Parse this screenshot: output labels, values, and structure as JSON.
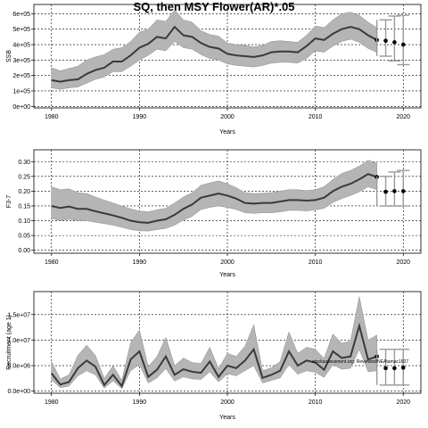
{
  "title": "SQ, then MSY Flower(AR)*.05",
  "chart_data": [
    {
      "type": "line",
      "title": "",
      "xlabel": "Years",
      "ylabel": "SSB",
      "xlim": [
        1978,
        2022
      ],
      "ylim": [
        -10000,
        660000
      ],
      "x_ticks": [
        1980,
        1990,
        2000,
        2010,
        2020
      ],
      "y_ticks": [
        0,
        100000,
        200000,
        300000,
        400000,
        500000,
        600000
      ],
      "y_tick_labels": [
        "0e+00",
        "1e+05",
        "2e+05",
        "3e+05",
        "4e+05",
        "5e+05",
        "6e+05"
      ],
      "grid": true,
      "x": [
        1980,
        1981,
        1982,
        1983,
        1984,
        1985,
        1986,
        1987,
        1988,
        1989,
        1990,
        1991,
        1992,
        1993,
        1994,
        1995,
        1996,
        1997,
        1998,
        1999,
        2000,
        2001,
        2002,
        2003,
        2004,
        2005,
        2006,
        2007,
        2008,
        2009,
        2010,
        2011,
        2012,
        2013,
        2014,
        2015,
        2016,
        2017
      ],
      "median": [
        170000,
        160000,
        170000,
        175000,
        210000,
        235000,
        250000,
        290000,
        290000,
        330000,
        380000,
        405000,
        450000,
        440000,
        515000,
        460000,
        450000,
        410000,
        385000,
        375000,
        340000,
        330000,
        325000,
        320000,
        330000,
        350000,
        355000,
        355000,
        350000,
        390000,
        440000,
        430000,
        470000,
        500000,
        515000,
        500000,
        460000,
        430000
      ],
      "upper": [
        250000,
        230000,
        245000,
        260000,
        300000,
        320000,
        335000,
        370000,
        380000,
        420000,
        480000,
        500000,
        560000,
        550000,
        625000,
        560000,
        545000,
        490000,
        465000,
        455000,
        410000,
        400000,
        395000,
        385000,
        395000,
        420000,
        425000,
        420000,
        415000,
        460000,
        520000,
        510000,
        560000,
        600000,
        610000,
        590000,
        545000,
        510000
      ],
      "lower": [
        120000,
        110000,
        120000,
        125000,
        150000,
        175000,
        190000,
        225000,
        225000,
        260000,
        300000,
        330000,
        370000,
        360000,
        420000,
        380000,
        370000,
        335000,
        310000,
        300000,
        275000,
        265000,
        260000,
        255000,
        265000,
        280000,
        285000,
        285000,
        280000,
        310000,
        360000,
        350000,
        390000,
        420000,
        435000,
        415000,
        375000,
        350000
      ],
      "projection": {
        "x": [
          2018,
          2019,
          2020
        ],
        "median": [
          425000,
          415000,
          400000
        ],
        "lower": [
          325000,
          295000,
          270000
        ],
        "upper": [
          560000,
          585000,
          590000
        ]
      }
    },
    {
      "type": "line",
      "title": "",
      "xlabel": "Years",
      "ylabel": "F3-7",
      "xlim": [
        1978,
        2022
      ],
      "ylim": [
        -0.01,
        0.34
      ],
      "x_ticks": [
        1980,
        1990,
        2000,
        2010,
        2020
      ],
      "y_ticks": [
        0,
        0.05,
        0.1,
        0.15,
        0.2,
        0.25,
        0.3
      ],
      "y_tick_labels": [
        "0.00",
        "0.05",
        "0.10",
        "0.15",
        "0.20",
        "0.25",
        "0.30"
      ],
      "grid": true,
      "x": [
        1980,
        1981,
        1982,
        1983,
        1984,
        1985,
        1986,
        1987,
        1988,
        1989,
        1990,
        1991,
        1992,
        1993,
        1994,
        1995,
        1996,
        1997,
        1998,
        1999,
        2000,
        2001,
        2002,
        2003,
        2004,
        2005,
        2006,
        2007,
        2008,
        2009,
        2010,
        2011,
        2012,
        2013,
        2014,
        2015,
        2016,
        2017
      ],
      "median": [
        0.15,
        0.143,
        0.148,
        0.14,
        0.14,
        0.132,
        0.125,
        0.118,
        0.11,
        0.1,
        0.095,
        0.093,
        0.1,
        0.105,
        0.12,
        0.14,
        0.155,
        0.178,
        0.185,
        0.192,
        0.185,
        0.175,
        0.16,
        0.158,
        0.16,
        0.16,
        0.165,
        0.17,
        0.17,
        0.168,
        0.17,
        0.178,
        0.2,
        0.215,
        0.225,
        0.24,
        0.258,
        0.248
      ],
      "upper": [
        0.215,
        0.205,
        0.208,
        0.195,
        0.192,
        0.18,
        0.17,
        0.16,
        0.15,
        0.14,
        0.133,
        0.13,
        0.137,
        0.142,
        0.16,
        0.18,
        0.195,
        0.22,
        0.228,
        0.235,
        0.225,
        0.212,
        0.195,
        0.192,
        0.193,
        0.195,
        0.2,
        0.205,
        0.205,
        0.202,
        0.205,
        0.215,
        0.24,
        0.26,
        0.27,
        0.285,
        0.305,
        0.295
      ],
      "lower": [
        0.108,
        0.1,
        0.105,
        0.1,
        0.1,
        0.095,
        0.09,
        0.085,
        0.078,
        0.07,
        0.066,
        0.065,
        0.07,
        0.074,
        0.085,
        0.102,
        0.115,
        0.138,
        0.145,
        0.15,
        0.145,
        0.138,
        0.127,
        0.125,
        0.127,
        0.127,
        0.13,
        0.135,
        0.135,
        0.133,
        0.137,
        0.142,
        0.162,
        0.175,
        0.185,
        0.198,
        0.215,
        0.205
      ],
      "projection": {
        "x": [
          2018,
          2019,
          2020
        ],
        "median": [
          0.198,
          0.2,
          0.2
        ],
        "lower": [
          0.15,
          0.15,
          0.15
        ],
        "upper": [
          0.25,
          0.265,
          0.27
        ]
      }
    },
    {
      "type": "line",
      "title": "",
      "xlabel": "Years",
      "ylabel": "Recruitment (age 1)",
      "xlim": [
        1978,
        2022
      ],
      "ylim": [
        -400000,
        19500000
      ],
      "x_ticks": [
        1980,
        1990,
        2000,
        2010,
        2020
      ],
      "y_ticks": [
        0,
        5000000,
        10000000,
        15000000
      ],
      "y_tick_labels": [
        "0.0e+00",
        "5.0e+06",
        "1.0e+07",
        "1.5e+07"
      ],
      "grid": true,
      "annotation": "stockassessment.org: Reviewed/NEAtamac1607",
      "x": [
        1980,
        1981,
        1982,
        1983,
        1984,
        1985,
        1986,
        1987,
        1988,
        1989,
        1990,
        1991,
        1992,
        1993,
        1994,
        1995,
        1996,
        1997,
        1998,
        1999,
        2000,
        2001,
        2002,
        2003,
        2004,
        2005,
        2006,
        2007,
        2008,
        2009,
        2010,
        2011,
        2012,
        2013,
        2014,
        2015,
        2016,
        2017
      ],
      "median": [
        3500000,
        1300000,
        1800000,
        4500000,
        6000000,
        4800000,
        1200000,
        3200000,
        1000000,
        6200000,
        7800000,
        2800000,
        4200000,
        6800000,
        3200000,
        4300000,
        3800000,
        3600000,
        5800000,
        2800000,
        5000000,
        4500000,
        6000000,
        8200000,
        2600000,
        3200000,
        4000000,
        7800000,
        5000000,
        6000000,
        5600000,
        4200000,
        7800000,
        6500000,
        6800000,
        12800000,
        6200000,
        6800000
      ],
      "upper": [
        5800000,
        2400000,
        3200000,
        7000000,
        9000000,
        7000000,
        2500000,
        5000000,
        2100000,
        9500000,
        12000000,
        4800000,
        6800000,
        10500000,
        5000000,
        6500000,
        5600000,
        5400000,
        8600000,
        4400000,
        7400000,
        6800000,
        8800000,
        13000000,
        4000000,
        4600000,
        5800000,
        11600000,
        7400000,
        8600000,
        8200000,
        6400000,
        11200000,
        9400000,
        9800000,
        18500000,
        10000000,
        11000000
      ],
      "lower": [
        2200000,
        700000,
        1000000,
        3000000,
        4000000,
        3200000,
        600000,
        2000000,
        500000,
        4000000,
        5200000,
        1600000,
        2600000,
        4400000,
        2000000,
        2800000,
        2400000,
        2300000,
        3800000,
        1800000,
        3400000,
        3000000,
        4000000,
        5000000,
        1600000,
        2100000,
        2600000,
        5200000,
        3300000,
        4000000,
        3700000,
        2700000,
        5200000,
        4300000,
        4500000,
        8200000,
        3800000,
        4000000
      ],
      "projection": {
        "x": [
          2018,
          2019,
          2020
        ],
        "median": [
          4500000,
          4500000,
          4600000
        ],
        "lower": [
          1200000,
          1200000,
          1200000
        ],
        "upper": [
          8200000,
          8200000,
          8200000
        ]
      }
    }
  ]
}
